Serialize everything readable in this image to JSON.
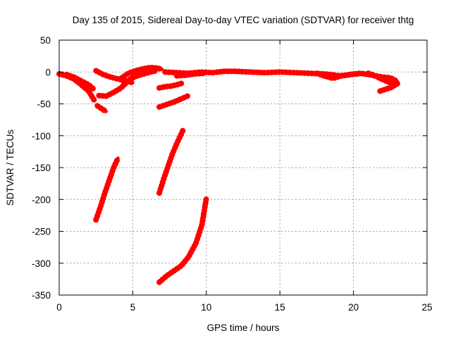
{
  "chart_data": {
    "type": "scatter",
    "title": "Day 135 of 2015, Sidereal Day-to-day VTEC variation (SDTVAR) for receiver thtg",
    "xlabel": "GPS time / hours",
    "ylabel": "SDTVAR / TECUs",
    "xlim": [
      0,
      25
    ],
    "ylim": [
      -350,
      50
    ],
    "xticks": [
      0,
      5,
      10,
      15,
      20,
      25
    ],
    "yticks": [
      50,
      0,
      -50,
      -100,
      -150,
      -200,
      -250,
      -300,
      -350
    ],
    "grid": true,
    "color": "#ff0000",
    "series": [
      {
        "x": [
          0.0,
          0.5,
          1.0,
          1.5,
          2.0,
          2.4
        ],
        "y": [
          -3,
          -6,
          -11,
          -20,
          -30,
          -45
        ]
      },
      {
        "x": [
          0.5,
          1.0,
          1.5,
          2.0,
          2.3
        ],
        "y": [
          -4,
          -8,
          -14,
          -20,
          -26
        ]
      },
      {
        "x": [
          2.6,
          2.9,
          3.2
        ],
        "y": [
          -53,
          -58,
          -62
        ]
      },
      {
        "x": [
          2.5,
          3.0,
          3.5,
          4.0,
          4.6,
          5.0
        ],
        "y": [
          2,
          -4,
          -8,
          -11,
          -14,
          -17
        ]
      },
      {
        "x": [
          2.7,
          3.2,
          3.7,
          4.2,
          4.7
        ],
        "y": [
          -37,
          -38,
          -32,
          -25,
          -14
        ]
      },
      {
        "x": [
          4.2,
          4.7,
          5.2,
          5.7,
          6.2,
          6.7,
          7.0
        ],
        "y": [
          -10,
          -2,
          2,
          5,
          7,
          6,
          4
        ]
      },
      {
        "x": [
          4.4,
          4.9,
          5.4
        ],
        "y": [
          -18,
          -10,
          -5
        ]
      },
      {
        "x": [
          5.0,
          5.6,
          6.2,
          6.6
        ],
        "y": [
          -8,
          -4,
          0,
          2
        ]
      },
      {
        "x": [
          6.8,
          7.2,
          7.6,
          8.0,
          8.3
        ],
        "y": [
          -25,
          -23,
          -22,
          -20,
          -18
        ]
      },
      {
        "x": [
          6.8,
          7.3,
          7.8,
          8.3,
          8.8
        ],
        "y": [
          -55,
          -51,
          -47,
          -42,
          -37
        ]
      },
      {
        "x": [
          7.2,
          8.0,
          8.8,
          9.6,
          10.4,
          11.2,
          12.0,
          13.0,
          14.0,
          15.0,
          16.0,
          17.0,
          18.0,
          18.5,
          19.0,
          19.5,
          20.0,
          20.5,
          21.0,
          21.5,
          22.0,
          22.5,
          23.0
        ],
        "y": [
          0,
          -1,
          -2,
          0,
          -1,
          1,
          1,
          0,
          -1,
          0,
          -1,
          -2,
          -3,
          -4,
          -6,
          -5,
          -3,
          -2,
          -4,
          -6,
          -8,
          -9,
          -15
        ]
      },
      {
        "x": [
          8.0,
          8.6,
          9.2,
          9.8
        ],
        "y": [
          -6,
          -5,
          -3,
          -2
        ]
      },
      {
        "x": [
          17.5,
          18.0,
          18.6,
          19.2,
          19.8,
          20.4
        ],
        "y": [
          -2,
          -6,
          -10,
          -6,
          -4,
          -3
        ]
      },
      {
        "x": [
          21.0,
          21.4,
          21.8,
          22.2,
          22.6,
          23.0
        ],
        "y": [
          -2,
          -5,
          -10,
          -14,
          -18,
          -20
        ]
      },
      {
        "x": [
          21.8,
          22.2,
          22.6,
          23.0
        ],
        "y": [
          -30,
          -27,
          -24,
          -18
        ]
      },
      {
        "x": [
          2.5,
          2.8,
          3.1,
          3.4,
          3.7,
          4.0
        ],
        "y": [
          -232,
          -212,
          -190,
          -170,
          -150,
          -135
        ]
      },
      {
        "x": [
          6.8,
          7.1,
          7.4,
          7.7,
          8.0,
          8.4
        ],
        "y": [
          -190,
          -168,
          -148,
          -128,
          -112,
          -92
        ]
      },
      {
        "x": [
          6.8,
          7.3,
          7.8,
          8.3,
          8.8,
          9.3,
          9.7,
          10.0
        ],
        "y": [
          -330,
          -320,
          -312,
          -304,
          -290,
          -268,
          -240,
          -198
        ]
      }
    ]
  }
}
